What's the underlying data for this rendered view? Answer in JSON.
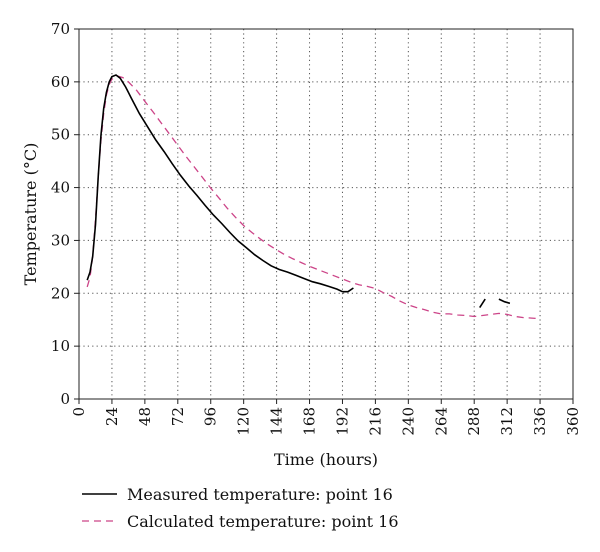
{
  "chart_data": {
    "type": "line",
    "title": "",
    "xlabel": "Time (hours)",
    "ylabel": "Temperature (°C)",
    "xlim": [
      0,
      360
    ],
    "ylim": [
      0,
      70
    ],
    "xticks": [
      0,
      24,
      48,
      72,
      96,
      120,
      144,
      168,
      192,
      216,
      240,
      264,
      288,
      312,
      336,
      360
    ],
    "yticks": [
      0,
      10,
      20,
      30,
      40,
      50,
      60,
      70
    ],
    "grid": "dotted",
    "legend_position": "bottom",
    "series": [
      {
        "name": "Measured temperature: point 16",
        "color": "#000000",
        "style": "solid",
        "points": [
          [
            6,
            22.5
          ],
          [
            8,
            24
          ],
          [
            10,
            27
          ],
          [
            12,
            33
          ],
          [
            14,
            42
          ],
          [
            16,
            50
          ],
          [
            18,
            55
          ],
          [
            20,
            58
          ],
          [
            22,
            60
          ],
          [
            24,
            61
          ],
          [
            27,
            61.3
          ],
          [
            30,
            60.7
          ],
          [
            34,
            59
          ],
          [
            38,
            57
          ],
          [
            44,
            54
          ],
          [
            50,
            51.5
          ],
          [
            56,
            49
          ],
          [
            62,
            46.8
          ],
          [
            68,
            44.5
          ],
          [
            74,
            42.3
          ],
          [
            80,
            40.3
          ],
          [
            86,
            38.5
          ],
          [
            92,
            36.6
          ],
          [
            98,
            34.8
          ],
          [
            104,
            33.2
          ],
          [
            110,
            31.5
          ],
          [
            116,
            29.9
          ],
          [
            122,
            28.6
          ],
          [
            128,
            27.3
          ],
          [
            134,
            26.2
          ],
          [
            140,
            25.2
          ],
          [
            146,
            24.5
          ],
          [
            152,
            24
          ],
          [
            158,
            23.4
          ],
          [
            164,
            22.8
          ],
          [
            170,
            22.2
          ],
          [
            176,
            21.8
          ],
          [
            182,
            21.3
          ],
          [
            188,
            20.8
          ],
          [
            192,
            20.3
          ],
          [
            196,
            20.3
          ],
          [
            200,
            21
          ]
        ],
        "segments": [
          [
            [
              292,
              17.3
            ],
            [
              296,
              18.9
            ]
          ],
          [
            [
              306,
              18.9
            ],
            [
              310,
              18.4
            ],
            [
              314,
              18.1
            ]
          ]
        ]
      },
      {
        "name": "Calculated temperature: point 16",
        "color": "#cc4488",
        "style": "dashed",
        "points": [
          [
            6,
            21.2
          ],
          [
            8,
            23
          ],
          [
            10,
            27
          ],
          [
            12,
            34
          ],
          [
            14,
            42
          ],
          [
            16,
            49
          ],
          [
            18,
            54
          ],
          [
            20,
            57.5
          ],
          [
            22,
            59.5
          ],
          [
            24,
            60.5
          ],
          [
            28,
            61.1
          ],
          [
            32,
            60.8
          ],
          [
            36,
            60
          ],
          [
            42,
            58.4
          ],
          [
            48,
            56.3
          ],
          [
            54,
            54.3
          ],
          [
            60,
            52.2
          ],
          [
            66,
            50.1
          ],
          [
            72,
            48
          ],
          [
            78,
            45.9
          ],
          [
            84,
            43.9
          ],
          [
            90,
            41.9
          ],
          [
            96,
            39.9
          ],
          [
            102,
            38
          ],
          [
            108,
            36.1
          ],
          [
            114,
            34.4
          ],
          [
            120,
            32.8
          ],
          [
            126,
            31.5
          ],
          [
            132,
            30.3
          ],
          [
            138,
            29.2
          ],
          [
            144,
            28.2
          ],
          [
            150,
            27.3
          ],
          [
            156,
            26.5
          ],
          [
            162,
            25.8
          ],
          [
            168,
            25.1
          ],
          [
            174,
            24.5
          ],
          [
            180,
            23.9
          ],
          [
            186,
            23.3
          ],
          [
            192,
            22.7
          ],
          [
            198,
            22.1
          ],
          [
            204,
            21.6
          ],
          [
            210,
            21.3
          ],
          [
            216,
            20.9
          ],
          [
            222,
            20.1
          ],
          [
            228,
            19.4
          ],
          [
            234,
            18.5
          ],
          [
            240,
            17.8
          ],
          [
            246,
            17.3
          ],
          [
            252,
            16.9
          ],
          [
            258,
            16.4
          ],
          [
            264,
            16.1
          ],
          [
            270,
            16.1
          ],
          [
            276,
            15.9
          ],
          [
            282,
            15.8
          ],
          [
            288,
            15.6
          ],
          [
            294,
            15.8
          ],
          [
            300,
            16
          ],
          [
            306,
            16.2
          ],
          [
            312,
            16
          ],
          [
            318,
            15.6
          ],
          [
            324,
            15.4
          ],
          [
            330,
            15.3
          ],
          [
            336,
            15.2
          ]
        ]
      }
    ]
  }
}
